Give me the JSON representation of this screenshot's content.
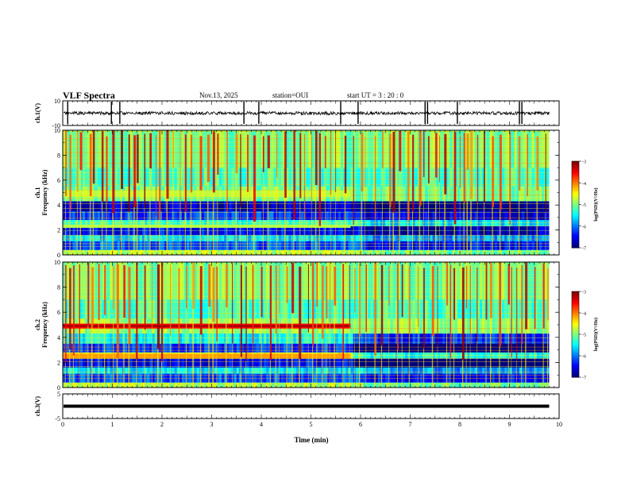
{
  "header": {
    "title": "VLF Spectra",
    "date": "Nov.13, 2025",
    "station": "station=OUI",
    "start_ut": "start UT =  3 : 20 : 0"
  },
  "chart_data": [
    {
      "type": "line",
      "id": "ch1",
      "ylabel": "ch.1(V)",
      "ylim": [
        -10,
        10
      ],
      "yticks": [
        -10,
        10
      ],
      "description_level": 0,
      "spikes_min": [
        0.1,
        0.98,
        1.15,
        3.65,
        3.95,
        5.6,
        5.95,
        7.3,
        7.35,
        7.95,
        9.2,
        9.25
      ]
    },
    {
      "type": "heatmap",
      "id": "ch1_spectrogram",
      "ylabel_line1": "ch.1",
      "ylabel_line2": "Frequency (kHz)",
      "ylim": [
        0,
        10
      ],
      "yticks": [
        0,
        2,
        4,
        6,
        8,
        10
      ],
      "colorbar": {
        "label": "log(PSD)(V²/Hz)",
        "ticks": [
          "-3",
          "-4",
          "-5",
          "-6",
          "-7"
        ],
        "range": [
          -7,
          -3
        ]
      }
    },
    {
      "type": "heatmap",
      "id": "ch2_spectrogram",
      "ylabel_line1": "ch.2",
      "ylabel_line2": "Frequency (kHz)",
      "ylim": [
        0,
        10
      ],
      "yticks": [
        0,
        2,
        4,
        6,
        8,
        10
      ],
      "colorbar": {
        "label": "log(PSD)(V²/Hz)",
        "ticks": [
          "-3",
          "-4",
          "-5",
          "-6",
          "-7"
        ],
        "range": [
          -7,
          -3
        ]
      }
    },
    {
      "type": "line",
      "id": "ch3",
      "ylabel": "ch.3(V)",
      "ylim": [
        -5,
        5
      ],
      "yticks": [
        -5,
        5
      ],
      "level": 0
    }
  ],
  "xaxis": {
    "label": "Time (min)",
    "range": [
      0,
      10
    ],
    "ticks": [
      "0",
      "1",
      "2",
      "3",
      "4",
      "5",
      "6",
      "7",
      "8",
      "9",
      "10"
    ],
    "data_end_min": 9.8
  }
}
